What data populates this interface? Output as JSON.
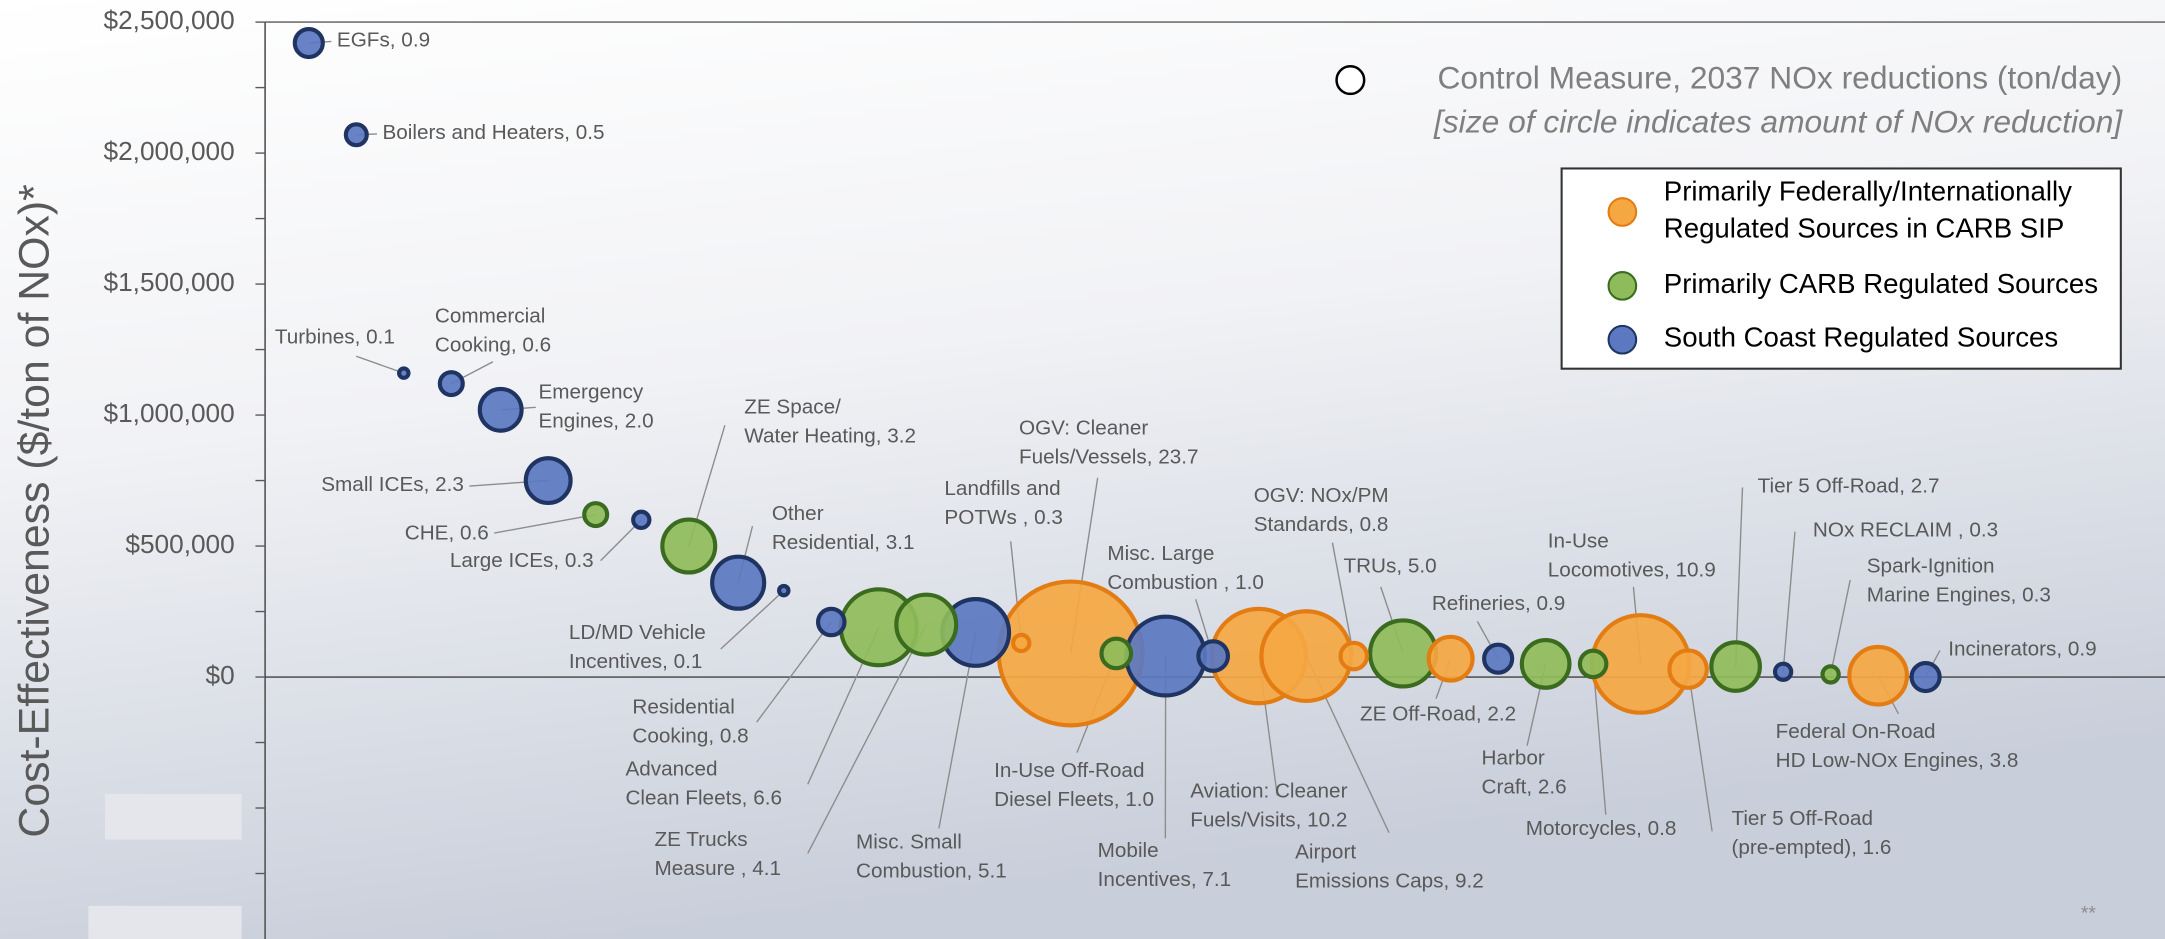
{
  "chart_data": {
    "type": "bubble",
    "y_label": "Cost-Effectiveness ($/ton of NOx)*",
    "legend_title": "Control Measure, 2037 NOx reductions (ton/day)",
    "legend_subtitle": "[size of circle indicates amount of NOx reduction]",
    "footnote": "**",
    "xlim": [
      0,
      100
    ],
    "ylim": [
      -1000000,
      2500000
    ],
    "yticks": [
      {
        "value": 0,
        "label": "$0"
      },
      {
        "value": 500000,
        "label": "$500,000"
      },
      {
        "value": 1000000,
        "label": "$1,000,000"
      },
      {
        "value": 1500000,
        "label": "$1,500,000"
      },
      {
        "value": 2000000,
        "label": "$2,000,000"
      },
      {
        "value": 2500000,
        "label": "$2,500,000"
      }
    ],
    "yticks_minor": [
      -750000,
      -500000,
      -250000,
      250000,
      750000,
      1250000,
      1750000,
      2250000
    ],
    "series": [
      {
        "name": [
          "Primarily Federally/Internationally",
          "Regulated Sources in CARB SIP"
        ],
        "color": "#f5a742",
        "edge": "#e37c12",
        "points": [
          {
            "label": [
              "Landfills and",
              "POTWs , 0.3"
            ],
            "x": 39.8,
            "y": 130000,
            "size": 0.3
          },
          {
            "label": [
              "OGV: Cleaner",
              "Fuels/Vessels, 23.7"
            ],
            "x": 42.4,
            "y": 90000,
            "size": 23.7
          },
          {
            "label": [
              "Aviation: Cleaner",
              "Fuels/Visits, 10.2"
            ],
            "x": 52.3,
            "y": 80000,
            "size": 10.2
          },
          {
            "label": [
              "Airport",
              "Emissions Caps, 9.2"
            ],
            "x": 54.8,
            "y": 80000,
            "size": 9.2
          },
          {
            "label": [
              "OGV: NOx/PM",
              "Standards, 0.8"
            ],
            "x": 57.3,
            "y": 80000,
            "size": 0.8
          },
          {
            "label": [
              "ZE Off-Road, 2.2"
            ],
            "x": 62.4,
            "y": 70000,
            "size": 2.2
          },
          {
            "label": [
              "In-Use",
              "Locomotives, 10.9"
            ],
            "x": 72.4,
            "y": 50000,
            "size": 10.9
          },
          {
            "label": [
              "Tier 5 Off-Road",
              "(pre-empted), 1.6"
            ],
            "x": 74.9,
            "y": 30000,
            "size": 1.6
          },
          {
            "label": [
              "Federal On-Road",
              "HD Low-NOx Engines, 3.8"
            ],
            "x": 84.9,
            "y": 5000,
            "size": 3.8
          }
        ]
      },
      {
        "name": [
          "Primarily CARB Regulated Sources"
        ],
        "color": "#8fbc5a",
        "edge": "#3b6b1f",
        "points": [
          {
            "label": [
              "CHE, 0.6"
            ],
            "x": 17.4,
            "y": 620000,
            "size": 0.6
          },
          {
            "label": [
              "ZE Space/",
              "Water Heating, 3.2"
            ],
            "x": 22.3,
            "y": 500000,
            "size": 3.2
          },
          {
            "label": [
              "Advanced",
              "Clean Fleets, 6.6"
            ],
            "x": 32.3,
            "y": 190000,
            "size": 6.6
          },
          {
            "label": [
              "ZE Trucks",
              "Measure , 4.1"
            ],
            "x": 34.8,
            "y": 200000,
            "size": 4.1
          },
          {
            "label": [
              "In-Use Off-Road",
              "Diesel Fleets, 1.0"
            ],
            "x": 44.8,
            "y": 90000,
            "size": 1.0
          },
          {
            "label": [
              "TRUs, 5.0"
            ],
            "x": 59.9,
            "y": 90000,
            "size": 5.0
          },
          {
            "label": [
              "Harbor",
              "Craft, 2.6"
            ],
            "x": 67.4,
            "y": 50000,
            "size": 2.6
          },
          {
            "label": [
              "Motorcycles, 0.8"
            ],
            "x": 69.9,
            "y": 50000,
            "size": 0.8
          },
          {
            "label": [
              "Tier 5 Off-Road, 2.7"
            ],
            "x": 77.4,
            "y": 40000,
            "size": 2.7
          },
          {
            "label": [
              "Spark-Ignition",
              "Marine Engines, 0.3"
            ],
            "x": 82.4,
            "y": 10000,
            "size": 0.3
          }
        ]
      },
      {
        "name": [
          "South Coast Regulated Sources"
        ],
        "color": "#5b78c0",
        "edge": "#1f3462",
        "points": [
          {
            "label": [
              "EGFs, 0.9"
            ],
            "x": 2.3,
            "y": 2420000,
            "size": 0.9
          },
          {
            "label": [
              "Boilers and Heaters, 0.5"
            ],
            "x": 4.8,
            "y": 2070000,
            "size": 0.5
          },
          {
            "label": [
              "Turbines, 0.1"
            ],
            "x": 7.3,
            "y": 1160000,
            "size": 0.1
          },
          {
            "label": [
              "Commercial",
              "Cooking, 0.6"
            ],
            "x": 9.8,
            "y": 1120000,
            "size": 0.6
          },
          {
            "label": [
              "Emergency",
              "Engines, 2.0"
            ],
            "x": 12.4,
            "y": 1020000,
            "size": 2.0
          },
          {
            "label": [
              "Small ICEs, 2.3"
            ],
            "x": 14.9,
            "y": 750000,
            "size": 2.3
          },
          {
            "label": [
              "Large ICEs, 0.3"
            ],
            "x": 19.8,
            "y": 600000,
            "size": 0.3
          },
          {
            "label": [
              "Other",
              "Residential, 3.1"
            ],
            "x": 24.9,
            "y": 360000,
            "size": 3.1
          },
          {
            "label": [
              "LD/MD Vehicle",
              "Incentives, 0.1"
            ],
            "x": 27.3,
            "y": 330000,
            "size": 0.1
          },
          {
            "label": [
              "Residential",
              "Cooking, 0.8"
            ],
            "x": 29.8,
            "y": 210000,
            "size": 0.8
          },
          {
            "label": [
              "Misc. Small",
              "Combustion, 5.1"
            ],
            "x": 37.4,
            "y": 170000,
            "size": 5.1
          },
          {
            "label": [
              "Mobile",
              "Incentives, 7.1"
            ],
            "x": 47.4,
            "y": 80000,
            "size": 7.1
          },
          {
            "label": [
              "Misc. Large",
              "Combustion , 1.0"
            ],
            "x": 49.9,
            "y": 80000,
            "size": 1.0
          },
          {
            "label": [
              "Refineries, 0.9"
            ],
            "x": 64.9,
            "y": 70000,
            "size": 0.9
          },
          {
            "label": [
              "NOx RECLAIM , 0.3"
            ],
            "x": 79.9,
            "y": 20000,
            "size": 0.3
          },
          {
            "label": [
              "Incinerators, 0.9"
            ],
            "x": 87.4,
            "y": 0,
            "size": 0.9
          }
        ]
      }
    ]
  }
}
